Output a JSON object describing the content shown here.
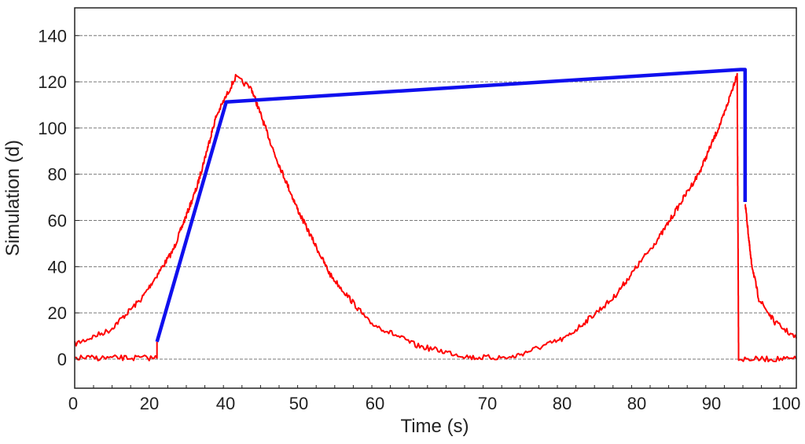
{
  "chart_data": {
    "type": "line",
    "title": "",
    "xlabel": "Time (s)",
    "ylabel": "Simulation (d)",
    "xlim": [
      0,
      100
    ],
    "ylim": [
      -12.6,
      152
    ],
    "x_tick_labels": [
      "0",
      "20",
      "40",
      "50",
      "60",
      "70",
      "80",
      "80",
      "90",
      "100"
    ],
    "y_ticks": [
      0,
      20,
      40,
      60,
      80,
      100,
      120,
      140
    ],
    "grid": true,
    "legend": "none",
    "series": [
      {
        "color": "#ff0000",
        "noisy": true,
        "points": [
          [
            0,
            6.5
          ],
          [
            4.9,
            12.6
          ],
          [
            9.3,
            26.3
          ],
          [
            13.6,
            46.8
          ],
          [
            16.9,
            74
          ],
          [
            19.6,
            105
          ],
          [
            22.3,
            122
          ],
          [
            24.5,
            117
          ],
          [
            27.8,
            88
          ],
          [
            31,
            64
          ],
          [
            35.4,
            36.5
          ],
          [
            40.8,
            16
          ],
          [
            47.4,
            5.8
          ],
          [
            55,
            0.7
          ],
          [
            60.5,
            0.7
          ],
          [
            68.1,
            9.2
          ],
          [
            74.6,
            26.3
          ],
          [
            81.2,
            53.6
          ],
          [
            86.6,
            81
          ],
          [
            89.9,
            105
          ],
          [
            91.8,
            123.5
          ],
          [
            92.0,
            0
          ],
          [
            100,
            0
          ]
        ]
      },
      {
        "color": "#ff0000",
        "noisy": true,
        "points": [
          [
            0,
            0.5
          ],
          [
            11.4,
            0.5
          ],
          [
            11.4,
            7.5
          ]
        ]
      },
      {
        "color": "#ff0000",
        "noisy": true,
        "points": [
          [
            92.9,
            68
          ],
          [
            93.7,
            43
          ],
          [
            94.8,
            26
          ],
          [
            97,
            16
          ],
          [
            100,
            9
          ]
        ]
      },
      {
        "color": "#1010ee",
        "noisy": false,
        "points": [
          [
            11.4,
            7.5
          ],
          [
            21.0,
            111.3
          ],
          [
            92.3,
            125.3
          ],
          [
            92.9,
            125.3
          ],
          [
            92.9,
            68
          ]
        ]
      }
    ]
  }
}
